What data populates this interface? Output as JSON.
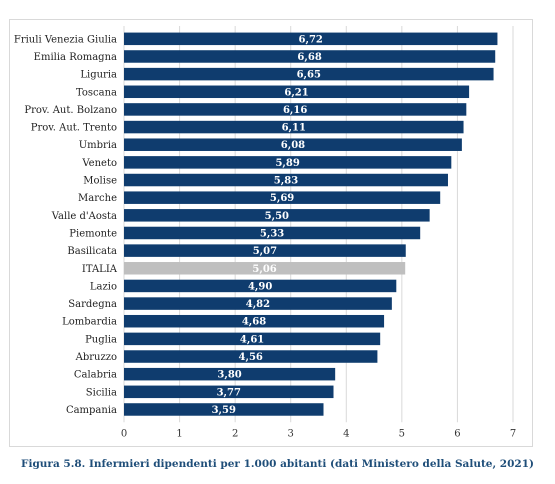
{
  "chart_data": {
    "type": "bar",
    "orientation": "horizontal",
    "title": "",
    "xlabel": "",
    "ylabel": "",
    "xlim": [
      0,
      7
    ],
    "x_ticks": [
      "0",
      "1",
      "2",
      "3",
      "4",
      "5",
      "6",
      "7"
    ],
    "grid": "vertical",
    "categories": [
      "Friuli Venezia Giulia",
      "Emilia Romagna",
      "Liguria",
      "Toscana",
      "Prov. Aut. Bolzano",
      "Prov. Aut. Trento",
      "Umbria",
      "Veneto",
      "Molise",
      "Marche",
      "Valle d'Aosta",
      "Piemonte",
      "Basilicata",
      "ITALIA",
      "Lazio",
      "Sardegna",
      "Lombardia",
      "Puglia",
      "Abruzzo",
      "Calabria",
      "Sicilia",
      "Campania"
    ],
    "values": [
      6.72,
      6.68,
      6.65,
      6.21,
      6.16,
      6.11,
      6.08,
      5.89,
      5.83,
      5.69,
      5.5,
      5.33,
      5.07,
      5.06,
      4.9,
      4.82,
      4.68,
      4.61,
      4.56,
      3.8,
      3.77,
      3.59
    ],
    "value_labels": [
      "6,72",
      "6,68",
      "6,65",
      "6,21",
      "6,16",
      "6,11",
      "6,08",
      "5,89",
      "5,83",
      "5,69",
      "5,50",
      "5,33",
      "5,07",
      "5,06",
      "4,90",
      "4,82",
      "4,68",
      "4,61",
      "4,56",
      "3,80",
      "3,77",
      "3,59"
    ],
    "bar_color": "#0f3c6e",
    "highlight_category": "ITALIA",
    "highlight_color": "#bfbfbf",
    "grid_color": "#d9d9d9"
  },
  "caption": "Figura 5.8. Infermieri dipendenti per 1.000 abitanti (dati Ministero della Salute, 2021)",
  "caption_color": "#1f4e79"
}
